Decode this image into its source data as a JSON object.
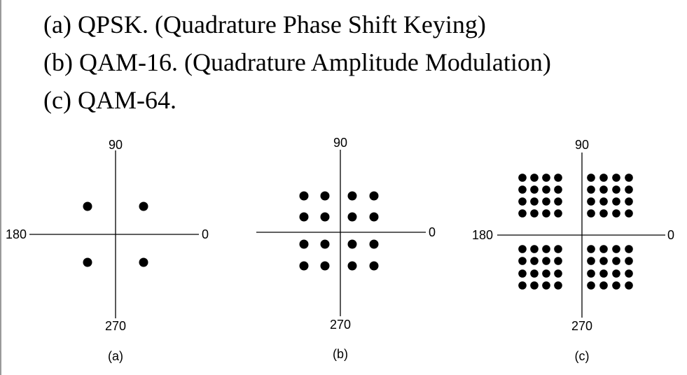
{
  "list": [
    {
      "text": "(a) QPSK. (Quadrature Phase Shift Keying)"
    },
    {
      "text": "(b) QAM-16. (Quadrature Amplitude Modulation)"
    },
    {
      "text": "(c) QAM-64."
    }
  ],
  "diagrams": [
    {
      "id": "a",
      "axis_labels": {
        "top": "90",
        "bottom": "270",
        "left": "180",
        "right": "0"
      },
      "caption": "(a)",
      "points_per_axis": 2
    },
    {
      "id": "b",
      "axis_labels": {
        "top": "90",
        "bottom": "270",
        "left": "",
        "right": "0"
      },
      "caption": "(b)",
      "points_per_axis": 4
    },
    {
      "id": "c",
      "axis_labels": {
        "top": "90",
        "bottom": "270",
        "left": "180",
        "right": "0"
      },
      "caption": "(c)",
      "points_per_axis": 8
    }
  ],
  "colors": {
    "ink": "#000000",
    "background": "#ffffff"
  }
}
